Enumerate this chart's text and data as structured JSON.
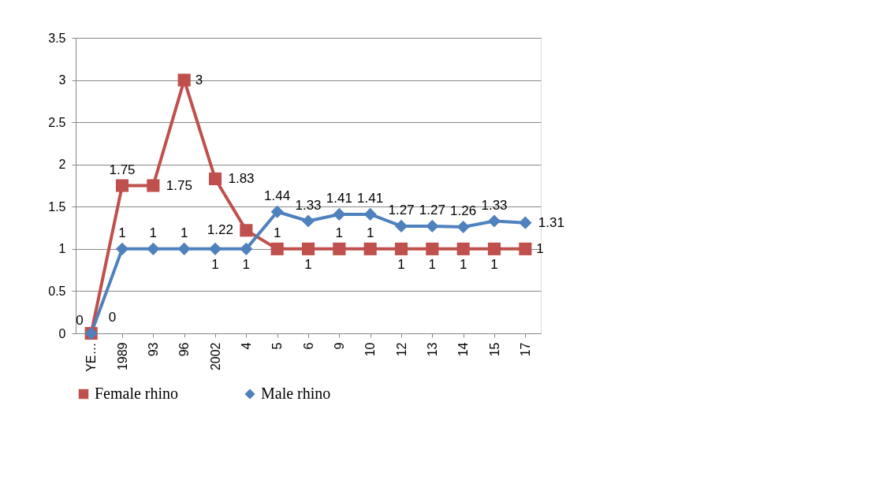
{
  "chart_data": {
    "type": "line",
    "categories": [
      "YE…",
      "1989",
      "93",
      "96",
      "2002",
      "4",
      "5",
      "6",
      "9",
      "10",
      "12",
      "13",
      "14",
      "15",
      "17"
    ],
    "series": [
      {
        "name": "Female rhino",
        "color": "#c0504d",
        "marker": "square",
        "values": [
          0,
          1.75,
          1.75,
          3,
          1.83,
          1.22,
          1,
          1,
          1,
          1,
          1,
          1,
          1,
          1,
          1
        ]
      },
      {
        "name": "Male rhino",
        "color": "#4f81bd",
        "marker": "diamond",
        "values": [
          0,
          1,
          1,
          1,
          1,
          1,
          1.44,
          1.33,
          1.41,
          1.41,
          1.27,
          1.27,
          1.26,
          1.33,
          1.31
        ]
      }
    ],
    "ylim": [
      0,
      3.5
    ],
    "yticks": [
      0,
      0.5,
      1,
      1.5,
      2,
      2.5,
      3,
      3.5
    ],
    "grid": "y",
    "legend": "bottom",
    "data_labels": true,
    "line_style": "solid"
  }
}
